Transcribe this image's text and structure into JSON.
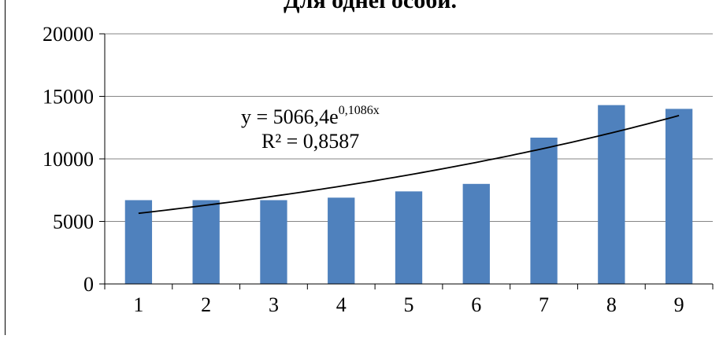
{
  "chart_data": {
    "type": "bar",
    "title": "Для однеї особи.",
    "categories": [
      "1",
      "2",
      "3",
      "4",
      "5",
      "6",
      "7",
      "8",
      "9"
    ],
    "values": [
      6700,
      6700,
      6700,
      6900,
      7400,
      8000,
      11700,
      14300,
      14000
    ],
    "ylim": [
      0,
      20000
    ],
    "yticks": [
      "0",
      "5000",
      "10000",
      "15000",
      "20000"
    ],
    "grid": true,
    "legend": "none",
    "bar_color": "#4f81bd",
    "trendline": {
      "type": "exponential",
      "a": 5066.4,
      "b": 0.1086,
      "equation_prefix": "y = 5066,4e",
      "equation_exponent": "0,1086x",
      "r_squared_label": "R² = 0,8587"
    }
  }
}
